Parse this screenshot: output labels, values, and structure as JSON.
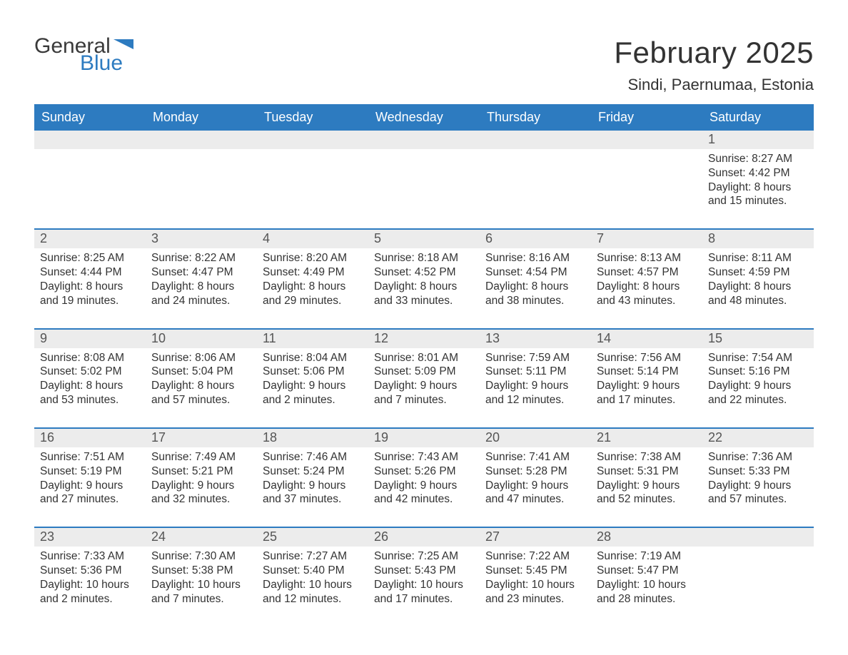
{
  "logo": {
    "general": "General",
    "blue": "Blue",
    "flag_color": "#2d7bc0"
  },
  "title": "February 2025",
  "location": "Sindi, Paernumaa, Estonia",
  "colors": {
    "header_bg": "#2d7bc0",
    "header_text": "#ffffff",
    "daynum_bg": "#ececec",
    "week_border": "#2d7bc0",
    "text": "#333333",
    "background": "#ffffff"
  },
  "weekdays": [
    "Sunday",
    "Monday",
    "Tuesday",
    "Wednesday",
    "Thursday",
    "Friday",
    "Saturday"
  ],
  "weeks": [
    [
      {
        "n": "",
        "sr": "",
        "ss": "",
        "dl": ""
      },
      {
        "n": "",
        "sr": "",
        "ss": "",
        "dl": ""
      },
      {
        "n": "",
        "sr": "",
        "ss": "",
        "dl": ""
      },
      {
        "n": "",
        "sr": "",
        "ss": "",
        "dl": ""
      },
      {
        "n": "",
        "sr": "",
        "ss": "",
        "dl": ""
      },
      {
        "n": "",
        "sr": "",
        "ss": "",
        "dl": ""
      },
      {
        "n": "1",
        "sr": "Sunrise: 8:27 AM",
        "ss": "Sunset: 4:42 PM",
        "dl": "Daylight: 8 hours and 15 minutes."
      }
    ],
    [
      {
        "n": "2",
        "sr": "Sunrise: 8:25 AM",
        "ss": "Sunset: 4:44 PM",
        "dl": "Daylight: 8 hours and 19 minutes."
      },
      {
        "n": "3",
        "sr": "Sunrise: 8:22 AM",
        "ss": "Sunset: 4:47 PM",
        "dl": "Daylight: 8 hours and 24 minutes."
      },
      {
        "n": "4",
        "sr": "Sunrise: 8:20 AM",
        "ss": "Sunset: 4:49 PM",
        "dl": "Daylight: 8 hours and 29 minutes."
      },
      {
        "n": "5",
        "sr": "Sunrise: 8:18 AM",
        "ss": "Sunset: 4:52 PM",
        "dl": "Daylight: 8 hours and 33 minutes."
      },
      {
        "n": "6",
        "sr": "Sunrise: 8:16 AM",
        "ss": "Sunset: 4:54 PM",
        "dl": "Daylight: 8 hours and 38 minutes."
      },
      {
        "n": "7",
        "sr": "Sunrise: 8:13 AM",
        "ss": "Sunset: 4:57 PM",
        "dl": "Daylight: 8 hours and 43 minutes."
      },
      {
        "n": "8",
        "sr": "Sunrise: 8:11 AM",
        "ss": "Sunset: 4:59 PM",
        "dl": "Daylight: 8 hours and 48 minutes."
      }
    ],
    [
      {
        "n": "9",
        "sr": "Sunrise: 8:08 AM",
        "ss": "Sunset: 5:02 PM",
        "dl": "Daylight: 8 hours and 53 minutes."
      },
      {
        "n": "10",
        "sr": "Sunrise: 8:06 AM",
        "ss": "Sunset: 5:04 PM",
        "dl": "Daylight: 8 hours and 57 minutes."
      },
      {
        "n": "11",
        "sr": "Sunrise: 8:04 AM",
        "ss": "Sunset: 5:06 PM",
        "dl": "Daylight: 9 hours and 2 minutes."
      },
      {
        "n": "12",
        "sr": "Sunrise: 8:01 AM",
        "ss": "Sunset: 5:09 PM",
        "dl": "Daylight: 9 hours and 7 minutes."
      },
      {
        "n": "13",
        "sr": "Sunrise: 7:59 AM",
        "ss": "Sunset: 5:11 PM",
        "dl": "Daylight: 9 hours and 12 minutes."
      },
      {
        "n": "14",
        "sr": "Sunrise: 7:56 AM",
        "ss": "Sunset: 5:14 PM",
        "dl": "Daylight: 9 hours and 17 minutes."
      },
      {
        "n": "15",
        "sr": "Sunrise: 7:54 AM",
        "ss": "Sunset: 5:16 PM",
        "dl": "Daylight: 9 hours and 22 minutes."
      }
    ],
    [
      {
        "n": "16",
        "sr": "Sunrise: 7:51 AM",
        "ss": "Sunset: 5:19 PM",
        "dl": "Daylight: 9 hours and 27 minutes."
      },
      {
        "n": "17",
        "sr": "Sunrise: 7:49 AM",
        "ss": "Sunset: 5:21 PM",
        "dl": "Daylight: 9 hours and 32 minutes."
      },
      {
        "n": "18",
        "sr": "Sunrise: 7:46 AM",
        "ss": "Sunset: 5:24 PM",
        "dl": "Daylight: 9 hours and 37 minutes."
      },
      {
        "n": "19",
        "sr": "Sunrise: 7:43 AM",
        "ss": "Sunset: 5:26 PM",
        "dl": "Daylight: 9 hours and 42 minutes."
      },
      {
        "n": "20",
        "sr": "Sunrise: 7:41 AM",
        "ss": "Sunset: 5:28 PM",
        "dl": "Daylight: 9 hours and 47 minutes."
      },
      {
        "n": "21",
        "sr": "Sunrise: 7:38 AM",
        "ss": "Sunset: 5:31 PM",
        "dl": "Daylight: 9 hours and 52 minutes."
      },
      {
        "n": "22",
        "sr": "Sunrise: 7:36 AM",
        "ss": "Sunset: 5:33 PM",
        "dl": "Daylight: 9 hours and 57 minutes."
      }
    ],
    [
      {
        "n": "23",
        "sr": "Sunrise: 7:33 AM",
        "ss": "Sunset: 5:36 PM",
        "dl": "Daylight: 10 hours and 2 minutes."
      },
      {
        "n": "24",
        "sr": "Sunrise: 7:30 AM",
        "ss": "Sunset: 5:38 PM",
        "dl": "Daylight: 10 hours and 7 minutes."
      },
      {
        "n": "25",
        "sr": "Sunrise: 7:27 AM",
        "ss": "Sunset: 5:40 PM",
        "dl": "Daylight: 10 hours and 12 minutes."
      },
      {
        "n": "26",
        "sr": "Sunrise: 7:25 AM",
        "ss": "Sunset: 5:43 PM",
        "dl": "Daylight: 10 hours and 17 minutes."
      },
      {
        "n": "27",
        "sr": "Sunrise: 7:22 AM",
        "ss": "Sunset: 5:45 PM",
        "dl": "Daylight: 10 hours and 23 minutes."
      },
      {
        "n": "28",
        "sr": "Sunrise: 7:19 AM",
        "ss": "Sunset: 5:47 PM",
        "dl": "Daylight: 10 hours and 28 minutes."
      },
      {
        "n": "",
        "sr": "",
        "ss": "",
        "dl": ""
      }
    ]
  ]
}
